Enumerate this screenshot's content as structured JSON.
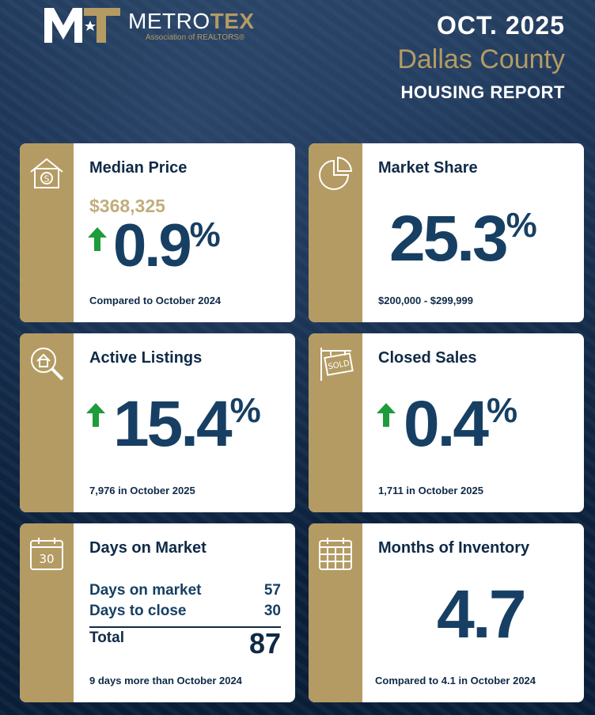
{
  "brand": {
    "name_part1": "METRO",
    "name_part2": "TEX",
    "subtitle": "Association of REALTORS®"
  },
  "report": {
    "month": "OCT. 2025",
    "county": "Dallas County",
    "type": "HOUSING REPORT"
  },
  "colors": {
    "navy": "#0f2a47",
    "gold": "#b49b63",
    "arrow_green": "#1e9b3a",
    "value_blue": "#173f63"
  },
  "cards": {
    "median_price": {
      "title": "Median Price",
      "icon": "house-dollar-icon",
      "price": "$368,325",
      "change": "0.9",
      "unit": "%",
      "direction": "up",
      "footnote": "Compared to October 2024"
    },
    "market_share": {
      "title": "Market Share",
      "icon": "pie-chart-icon",
      "value": "25.3",
      "unit": "%",
      "footnote": "$200,000 - $299,999"
    },
    "active_listings": {
      "title": "Active Listings",
      "icon": "house-search-icon",
      "change": "15.4",
      "unit": "%",
      "direction": "up",
      "footnote": "7,976 in October 2025"
    },
    "closed_sales": {
      "title": "Closed Sales",
      "icon": "sold-sign-icon",
      "change": "0.4",
      "unit": "%",
      "direction": "up",
      "footnote": "1,711 in October 2025"
    },
    "days_on_market": {
      "title": "Days on Market",
      "icon": "calendar-30-icon",
      "icon_text": "30",
      "rows": [
        {
          "label": "Days on market",
          "value": "57"
        },
        {
          "label": "Days to close",
          "value": "30"
        }
      ],
      "total_label": "Total",
      "total_value": "87",
      "footnote": "9 days more than October 2024"
    },
    "months_inventory": {
      "title": "Months of Inventory",
      "icon": "calendar-grid-icon",
      "value": "4.7",
      "footnote": "Compared to 4.1 in October 2024"
    }
  }
}
